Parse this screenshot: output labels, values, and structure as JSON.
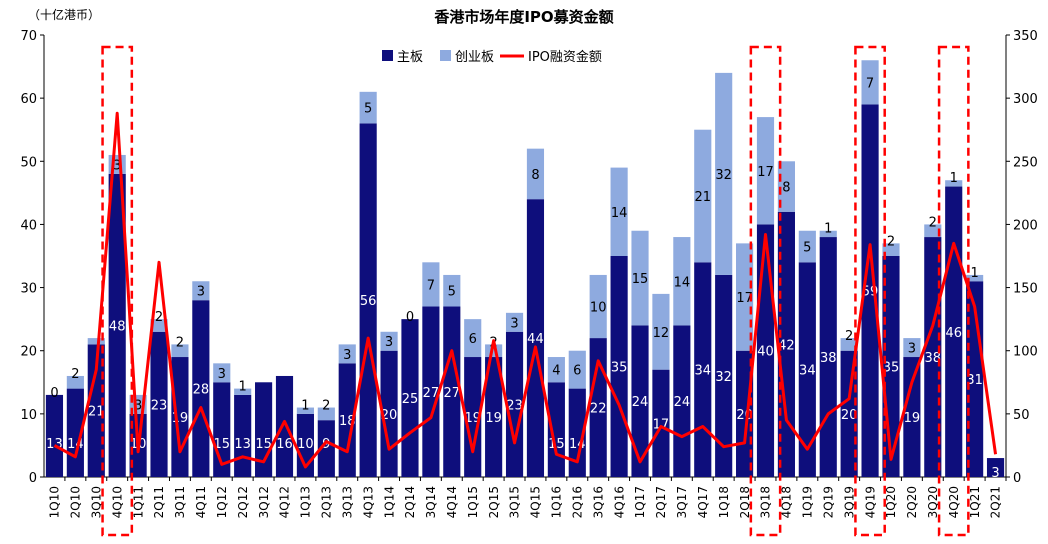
{
  "chart_data": {
    "type": "bar",
    "title": "香港市场年度IPO募资金额",
    "y_unit_label": "（十亿港币）",
    "ylim_left": [
      0,
      70
    ],
    "ylim_right": [
      0,
      350
    ],
    "yticks_left": [
      "0",
      "10",
      "20",
      "30",
      "40",
      "50",
      "60",
      "70"
    ],
    "yticks_right": [
      "0",
      "50",
      "100",
      "150",
      "200",
      "250",
      "300",
      "350"
    ],
    "legend": [
      "主板",
      "创业板",
      "IPO融资金额"
    ],
    "colors": {
      "main": "#0e0e7c",
      "gem": "#8eaadf",
      "line": "#ff0000",
      "highlight": "#ff0000"
    },
    "categories": [
      "1Q10",
      "2Q10",
      "3Q10",
      "4Q10",
      "1Q11",
      "2Q11",
      "3Q11",
      "4Q11",
      "1Q12",
      "2Q12",
      "3Q12",
      "4Q12",
      "1Q13",
      "2Q13",
      "3Q13",
      "4Q13",
      "1Q14",
      "2Q14",
      "3Q14",
      "4Q14",
      "1Q15",
      "2Q15",
      "3Q15",
      "4Q15",
      "1Q16",
      "2Q16",
      "3Q16",
      "4Q16",
      "1Q17",
      "2Q17",
      "3Q17",
      "4Q17",
      "1Q18",
      "2Q18",
      "3Q18",
      "4Q18",
      "1Q19",
      "2Q19",
      "3Q19",
      "4Q19",
      "1Q20",
      "2Q20",
      "3Q20",
      "4Q20",
      "1Q21",
      "2Q21"
    ],
    "series": [
      {
        "name": "主板",
        "axis": "left",
        "values": [
          13,
          14,
          21,
          48,
          10,
          23,
          19,
          28,
          15,
          13,
          15,
          16,
          10,
          9,
          18,
          56,
          20,
          25,
          27,
          27,
          19,
          19,
          23,
          44,
          15,
          14,
          22,
          35,
          24,
          17,
          24,
          34,
          32,
          20,
          40,
          42,
          34,
          38,
          20,
          59,
          35,
          19,
          38,
          46,
          31,
          3
        ],
        "labels": [
          "13",
          "14",
          "21",
          "48",
          "10",
          "23",
          "19",
          "28",
          "15",
          "13",
          "15",
          "16",
          "10",
          "9",
          "18",
          "56",
          "20",
          "25",
          "27",
          "27",
          "19",
          "19",
          "23",
          "44",
          "15",
          "14",
          "22",
          "35",
          "24",
          "17",
          "24",
          "34",
          "32",
          "20",
          "40",
          "42",
          "34",
          "38",
          "20",
          "59",
          "35",
          "19",
          "38",
          "46",
          "31",
          "3"
        ]
      },
      {
        "name": "创业板",
        "axis": "left",
        "values": [
          0,
          2,
          1,
          3,
          3,
          2,
          2,
          3,
          3,
          1,
          0,
          0,
          1,
          2,
          3,
          5,
          3,
          0,
          7,
          5,
          6,
          2,
          3,
          8,
          4,
          6,
          10,
          14,
          15,
          12,
          14,
          21,
          32,
          17,
          17,
          8,
          5,
          1,
          2,
          7,
          2,
          3,
          2,
          1,
          1,
          0
        ],
        "labels": [
          "0",
          "2",
          "",
          "3",
          "3",
          "2",
          "2",
          "3",
          "3",
          "1",
          "",
          "",
          "1",
          "2",
          "3",
          "5",
          "3",
          "0",
          "7",
          "5",
          "6",
          "2",
          "3",
          "8",
          "4",
          "6",
          "10",
          "14",
          "15",
          "12",
          "14",
          "21",
          "32",
          "17",
          "17",
          "8",
          "5",
          "1",
          "2",
          "7",
          "2",
          "3",
          "2",
          "1",
          "1",
          ""
        ]
      },
      {
        "name": "IPO融资金额",
        "axis": "right",
        "type": "line",
        "values": [
          25,
          16,
          85,
          288,
          20,
          170,
          20,
          55,
          10,
          16,
          12,
          44,
          8,
          28,
          20,
          110,
          22,
          35,
          47,
          100,
          20,
          108,
          27,
          103,
          18,
          12,
          92,
          57,
          12,
          40,
          32,
          40,
          24,
          27,
          192,
          45,
          22,
          50,
          62,
          184,
          14,
          75,
          120,
          185,
          135,
          18
        ]
      }
    ],
    "highlighted_categories": [
      "4Q10",
      "3Q18",
      "4Q19",
      "4Q20"
    ]
  }
}
